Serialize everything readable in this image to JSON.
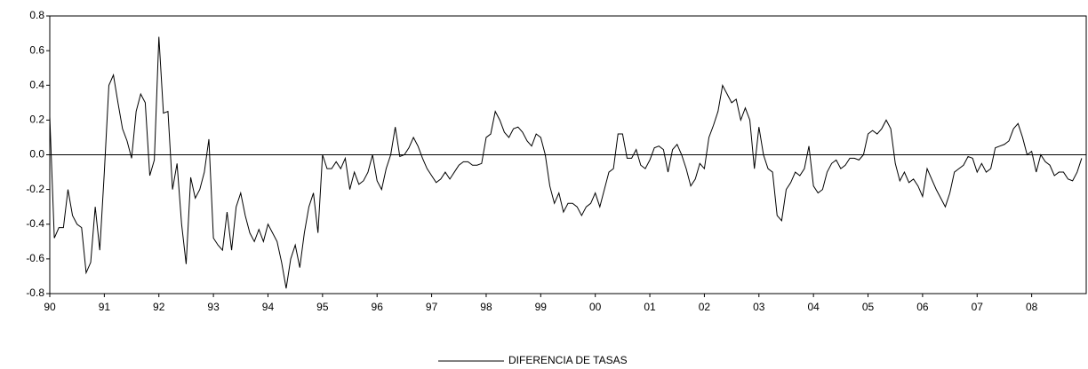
{
  "chart_data": {
    "type": "line",
    "categories": [
      "90",
      null,
      null,
      null,
      null,
      null,
      null,
      null,
      null,
      null,
      null,
      null,
      "91",
      null,
      null,
      null,
      null,
      null,
      null,
      null,
      null,
      null,
      null,
      null,
      "92",
      null,
      null,
      null,
      null,
      null,
      null,
      null,
      null,
      null,
      null,
      null,
      "93",
      null,
      null,
      null,
      null,
      null,
      null,
      null,
      null,
      null,
      null,
      null,
      "94",
      null,
      null,
      null,
      null,
      null,
      null,
      null,
      null,
      null,
      null,
      null,
      "95",
      null,
      null,
      null,
      null,
      null,
      null,
      null,
      null,
      null,
      null,
      null,
      "96",
      null,
      null,
      null,
      null,
      null,
      null,
      null,
      null,
      null,
      null,
      null,
      "97",
      null,
      null,
      null,
      null,
      null,
      null,
      null,
      null,
      null,
      null,
      null,
      "98",
      null,
      null,
      null,
      null,
      null,
      null,
      null,
      null,
      null,
      null,
      null,
      "99",
      null,
      null,
      null,
      null,
      null,
      null,
      null,
      null,
      null,
      null,
      null,
      "00",
      null,
      null,
      null,
      null,
      null,
      null,
      null,
      null,
      null,
      null,
      null,
      "01",
      null,
      null,
      null,
      null,
      null,
      null,
      null,
      null,
      null,
      null,
      null,
      "02",
      null,
      null,
      null,
      null,
      null,
      null,
      null,
      null,
      null,
      null,
      null,
      "03",
      null,
      null,
      null,
      null,
      null,
      null,
      null,
      null,
      null,
      null,
      null,
      "04",
      null,
      null,
      null,
      null,
      null,
      null,
      null,
      null,
      null,
      null,
      null,
      "05",
      null,
      null,
      null,
      null,
      null,
      null,
      null,
      null,
      null,
      null,
      null,
      "06",
      null,
      null,
      null,
      null,
      null,
      null,
      null,
      null,
      null,
      null,
      null,
      "07",
      null,
      null,
      null,
      null,
      null,
      null,
      null,
      null,
      null,
      null,
      null,
      "08",
      null,
      null,
      null,
      null,
      null,
      null,
      null,
      null,
      null,
      null,
      null
    ],
    "series": [
      {
        "name": "DIFERENCIA DE TASAS",
        "color": "#000000",
        "values": [
          0.22,
          -0.48,
          -0.42,
          -0.42,
          -0.2,
          -0.35,
          -0.4,
          -0.42,
          -0.68,
          -0.62,
          -0.3,
          -0.55,
          -0.1,
          0.4,
          0.46,
          0.3,
          0.15,
          0.08,
          -0.02,
          0.25,
          0.35,
          0.3,
          -0.12,
          -0.03,
          0.68,
          0.24,
          0.25,
          -0.2,
          -0.05,
          -0.4,
          -0.63,
          -0.13,
          -0.25,
          -0.2,
          -0.1,
          0.09,
          -0.48,
          -0.52,
          -0.55,
          -0.33,
          -0.55,
          -0.3,
          -0.22,
          -0.35,
          -0.45,
          -0.5,
          -0.43,
          -0.5,
          -0.4,
          -0.45,
          -0.5,
          -0.62,
          -0.77,
          -0.6,
          -0.52,
          -0.65,
          -0.45,
          -0.3,
          -0.22,
          -0.45,
          0.0,
          -0.08,
          -0.08,
          -0.04,
          -0.08,
          -0.02,
          -0.2,
          -0.1,
          -0.17,
          -0.15,
          -0.1,
          0.0,
          -0.15,
          -0.2,
          -0.08,
          0.0,
          0.16,
          -0.01,
          0.0,
          0.04,
          0.1,
          0.05,
          -0.02,
          -0.08,
          -0.12,
          -0.16,
          -0.14,
          -0.1,
          -0.14,
          -0.1,
          -0.06,
          -0.04,
          -0.04,
          -0.06,
          -0.06,
          -0.05,
          0.1,
          0.12,
          0.25,
          0.2,
          0.13,
          0.1,
          0.15,
          0.16,
          0.13,
          0.08,
          0.05,
          0.12,
          0.1,
          0.0,
          -0.18,
          -0.28,
          -0.22,
          -0.33,
          -0.28,
          -0.28,
          -0.3,
          -0.35,
          -0.3,
          -0.28,
          -0.22,
          -0.3,
          -0.2,
          -0.1,
          -0.08,
          0.12,
          0.12,
          -0.02,
          -0.02,
          0.03,
          -0.06,
          -0.08,
          -0.03,
          0.04,
          0.05,
          0.03,
          -0.1,
          0.03,
          0.06,
          0.0,
          -0.08,
          -0.18,
          -0.14,
          -0.05,
          -0.08,
          0.1,
          0.17,
          0.25,
          0.4,
          0.35,
          0.3,
          0.32,
          0.2,
          0.27,
          0.2,
          -0.08,
          0.16,
          0.0,
          -0.08,
          -0.1,
          -0.35,
          -0.38,
          -0.2,
          -0.16,
          -0.1,
          -0.12,
          -0.08,
          0.05,
          -0.18,
          -0.22,
          -0.2,
          -0.1,
          -0.05,
          -0.03,
          -0.08,
          -0.06,
          -0.02,
          -0.02,
          -0.03,
          0.0,
          0.12,
          0.14,
          0.12,
          0.15,
          0.2,
          0.15,
          -0.05,
          -0.15,
          -0.1,
          -0.16,
          -0.14,
          -0.18,
          -0.24,
          -0.08,
          -0.14,
          -0.2,
          -0.25,
          -0.3,
          -0.22,
          -0.1,
          -0.08,
          -0.06,
          -0.01,
          -0.02,
          -0.1,
          -0.05,
          -0.1,
          -0.08,
          0.04,
          0.05,
          0.06,
          0.08,
          0.15,
          0.18,
          0.1,
          0.0,
          0.02,
          -0.1,
          0.0,
          -0.04,
          -0.06,
          -0.12,
          -0.1,
          -0.1,
          -0.14,
          -0.15,
          -0.1,
          -0.02
        ]
      }
    ],
    "ylim": [
      -0.8,
      0.8
    ],
    "yticks": [
      -0.8,
      -0.6,
      -0.4,
      -0.2,
      {
        "value": 0,
        "label": "0.0"
      },
      0.2,
      0.4,
      0.6,
      0.8
    ],
    "legend": "bottom"
  }
}
